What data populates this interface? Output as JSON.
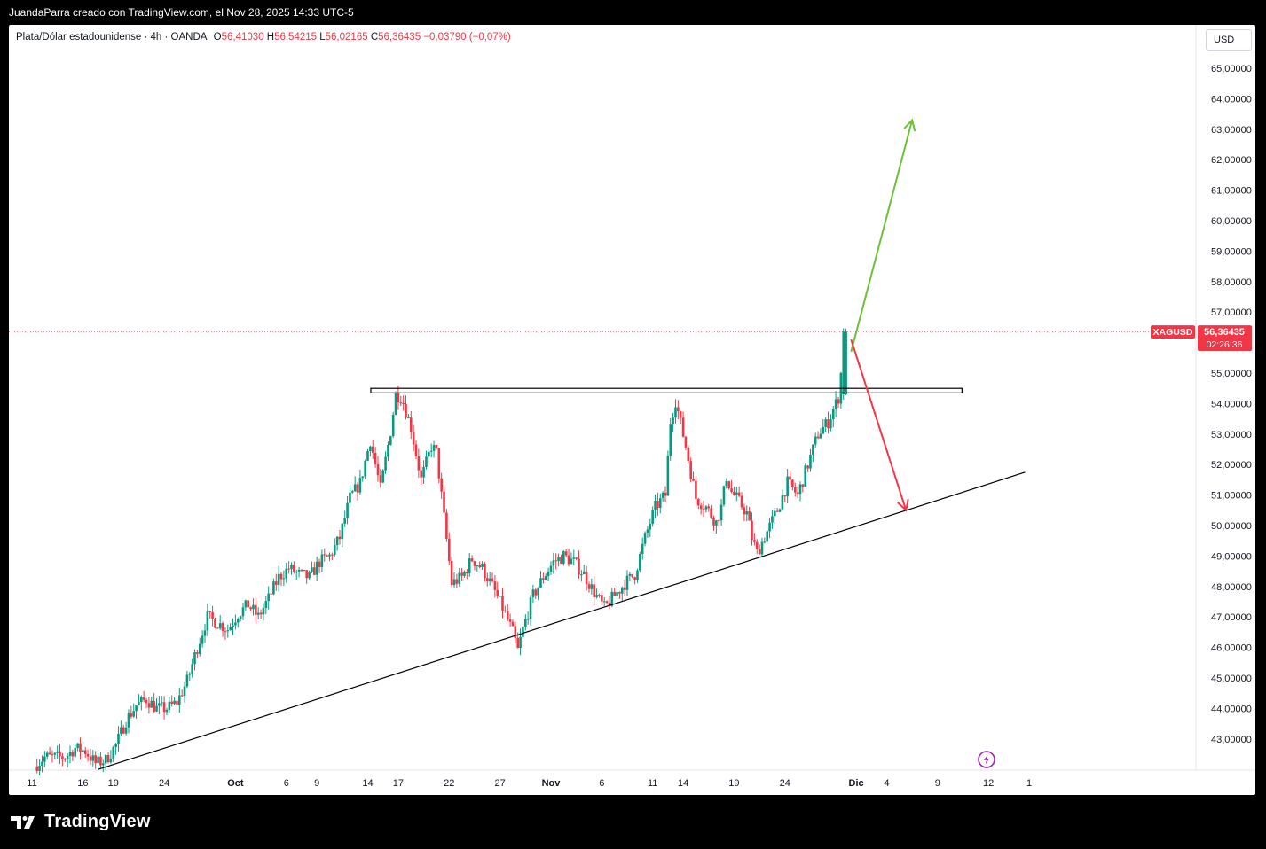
{
  "header": {
    "caption": "JuandaParra creado con TradingView.com, el Nov 28, 2025 14:33 UTC-5"
  },
  "legend": {
    "symbol": "Plata/Dólar estadounidense · 4h · OANDA",
    "open_key": "O",
    "open": "56,41030",
    "high_key": "H",
    "high": "56,54215",
    "low_key": "L",
    "low": "56,02165",
    "close_key": "C",
    "close": "56,36435",
    "change": "−0,03790 (−0,07%)"
  },
  "currency_button": {
    "label": "USD"
  },
  "price_badge": {
    "ticker": "XAGUSD",
    "price": "56,36435",
    "countdown": "02:26:36"
  },
  "brand": {
    "name": "TradingView"
  },
  "colors": {
    "up": "#089981",
    "down": "#f23645",
    "line": "#000000",
    "arrow_up": "#6fbf3a",
    "arrow_down": "#f23645",
    "badge": "#f23645"
  },
  "icons": {
    "flash": "flash-icon",
    "brand": "tradingview-logo-icon"
  },
  "chart_data": {
    "type": "candlestick",
    "timeframe": "4h",
    "ylim": [
      42.0,
      66.5
    ],
    "y_ticks": [
      {
        "value": 43,
        "label": "43,00000"
      },
      {
        "value": 44,
        "label": "44,00000"
      },
      {
        "value": 45,
        "label": "45,00000"
      },
      {
        "value": 46,
        "label": "46,00000"
      },
      {
        "value": 47,
        "label": "47,00000"
      },
      {
        "value": 48,
        "label": "48,00000"
      },
      {
        "value": 49,
        "label": "49,00000"
      },
      {
        "value": 50,
        "label": "50,00000"
      },
      {
        "value": 51,
        "label": "51,00000"
      },
      {
        "value": 52,
        "label": "52,00000"
      },
      {
        "value": 53,
        "label": "53,00000"
      },
      {
        "value": 54,
        "label": "54,00000"
      },
      {
        "value": 55,
        "label": "55,00000"
      },
      {
        "value": 57,
        "label": "57,00000"
      },
      {
        "value": 58,
        "label": "58,00000"
      },
      {
        "value": 59,
        "label": "59,00000"
      },
      {
        "value": 60,
        "label": "60,00000"
      },
      {
        "value": 61,
        "label": "61,00000"
      },
      {
        "value": 62,
        "label": "62,00000"
      },
      {
        "value": 63,
        "label": "63,00000"
      },
      {
        "value": 64,
        "label": "64,00000"
      },
      {
        "value": 65,
        "label": "65,00000"
      }
    ],
    "x_ticks": [
      {
        "day": 11,
        "label": "11",
        "bold": false
      },
      {
        "day": 16,
        "label": "16",
        "bold": false
      },
      {
        "day": 19,
        "label": "19",
        "bold": false
      },
      {
        "day": 24,
        "label": "24",
        "bold": false
      },
      {
        "day": 31,
        "label": "Oct",
        "bold": true
      },
      {
        "day": 36,
        "label": "6",
        "bold": false
      },
      {
        "day": 39,
        "label": "9",
        "bold": false
      },
      {
        "day": 44,
        "label": "14",
        "bold": false
      },
      {
        "day": 47,
        "label": "17",
        "bold": false
      },
      {
        "day": 52,
        "label": "22",
        "bold": false
      },
      {
        "day": 57,
        "label": "27",
        "bold": false
      },
      {
        "day": 62,
        "label": "Nov",
        "bold": true
      },
      {
        "day": 67,
        "label": "6",
        "bold": false
      },
      {
        "day": 72,
        "label": "11",
        "bold": false
      },
      {
        "day": 75,
        "label": "14",
        "bold": false
      },
      {
        "day": 80,
        "label": "19",
        "bold": false
      },
      {
        "day": 85,
        "label": "24",
        "bold": false
      },
      {
        "day": 92,
        "label": "Dic",
        "bold": true
      },
      {
        "day": 95,
        "label": "4",
        "bold": false
      },
      {
        "day": 100,
        "label": "9",
        "bold": false
      },
      {
        "day": 105,
        "label": "12",
        "bold": false
      },
      {
        "day": 109,
        "label": "1",
        "bold": false
      }
    ],
    "price_path": [
      [
        11.5,
        42.1
      ],
      [
        12.5,
        42.4
      ],
      [
        14.5,
        42.4
      ],
      [
        15.5,
        42.7
      ],
      [
        16.5,
        42.6
      ],
      [
        17.5,
        42.2
      ],
      [
        18.5,
        42.3
      ],
      [
        19.5,
        42.8
      ],
      [
        20.5,
        43.6
      ],
      [
        21.5,
        44.1
      ],
      [
        22.5,
        44.3
      ],
      [
        23.5,
        44.0
      ],
      [
        24.5,
        44.0
      ],
      [
        25.5,
        44.2
      ],
      [
        26.5,
        44.9
      ],
      [
        27.5,
        46.0
      ],
      [
        28.5,
        47.0
      ],
      [
        29.5,
        46.8
      ],
      [
        30.5,
        46.6
      ],
      [
        31.5,
        47.1
      ],
      [
        32.5,
        47.4
      ],
      [
        33.5,
        47.0
      ],
      [
        34.5,
        47.6
      ],
      [
        35.5,
        48.3
      ],
      [
        36.5,
        48.6
      ],
      [
        37.5,
        48.4
      ],
      [
        38.5,
        48.3
      ],
      [
        39.5,
        48.8
      ],
      [
        40.5,
        49.0
      ],
      [
        41.5,
        49.6
      ],
      [
        42.5,
        50.9
      ],
      [
        43.5,
        51.4
      ],
      [
        44.5,
        52.8
      ],
      [
        45.5,
        51.2
      ],
      [
        46.5,
        53.1
      ],
      [
        47.0,
        54.3
      ],
      [
        47.6,
        54.2
      ],
      [
        48.5,
        53.2
      ],
      [
        49.5,
        51.5
      ],
      [
        50.5,
        52.6
      ],
      [
        51.0,
        52.4
      ],
      [
        51.7,
        50.4
      ],
      [
        52.5,
        48.1
      ],
      [
        53.5,
        48.3
      ],
      [
        54.5,
        48.9
      ],
      [
        55.5,
        48.6
      ],
      [
        56.5,
        48.0
      ],
      [
        57.5,
        47.3
      ],
      [
        58.5,
        46.5
      ],
      [
        59.0,
        45.9
      ],
      [
        59.5,
        46.6
      ],
      [
        60.5,
        47.7
      ],
      [
        61.5,
        48.3
      ],
      [
        62.5,
        48.8
      ],
      [
        63.5,
        49.0
      ],
      [
        64.5,
        48.8
      ],
      [
        65.5,
        48.4
      ],
      [
        66.5,
        47.8
      ],
      [
        67.5,
        47.3
      ],
      [
        68.5,
        47.7
      ],
      [
        69.5,
        48.1
      ],
      [
        70.5,
        48.4
      ],
      [
        71.5,
        49.6
      ],
      [
        72.5,
        50.6
      ],
      [
        73.5,
        51.0
      ],
      [
        74.0,
        53.4
      ],
      [
        74.5,
        54.1
      ],
      [
        75.5,
        52.6
      ],
      [
        76.5,
        50.9
      ],
      [
        77.5,
        50.6
      ],
      [
        78.5,
        50.1
      ],
      [
        79.0,
        50.6
      ],
      [
        79.5,
        51.6
      ],
      [
        80.0,
        51.1
      ],
      [
        80.5,
        50.9
      ],
      [
        81.5,
        50.4
      ],
      [
        82.0,
        49.6
      ],
      [
        82.5,
        49.1
      ],
      [
        83.5,
        49.8
      ],
      [
        84.5,
        50.5
      ],
      [
        85.5,
        51.4
      ],
      [
        86.5,
        51.0
      ],
      [
        87.5,
        52.0
      ],
      [
        88.5,
        53.0
      ],
      [
        89.5,
        53.4
      ],
      [
        90.5,
        54.2
      ],
      [
        91.2,
        56.4
      ]
    ],
    "annotations": {
      "resistance_zone": {
        "x0": 44.3,
        "x1": 102.4,
        "y0": 54.35,
        "y1": 54.5
      },
      "trendline": {
        "x0": 17.5,
        "y0": 42.0,
        "x1": 108.6,
        "y1": 51.75
      },
      "arrow_up": {
        "x0": 91.5,
        "y0": 55.7,
        "x1": 97.5,
        "y1": 63.3
      },
      "arrow_down": {
        "x0": 91.5,
        "y0": 56.1,
        "x1": 96.9,
        "y1": 50.5
      },
      "current_price": 56.36435
    }
  }
}
